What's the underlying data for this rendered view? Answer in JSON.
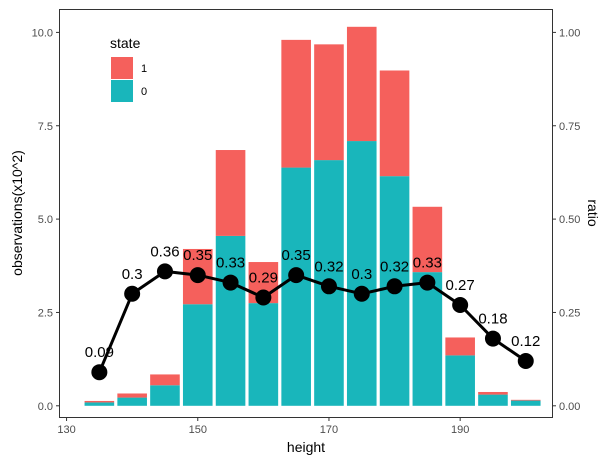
{
  "chart_data": {
    "type": "bar",
    "xlabel": "height",
    "ylabel": "observations(x10^2)",
    "y2label": "ratio",
    "xlim": [
      129,
      204
    ],
    "ylim": [
      -0.3,
      10.6
    ],
    "y2lim": [
      -0.03,
      1.06
    ],
    "xticks": [
      130,
      150,
      170,
      190
    ],
    "yticks": [
      0.0,
      2.5,
      5.0,
      7.5,
      10.0
    ],
    "ytick_labels": [
      "0.0",
      "2.5",
      "5.0",
      "7.5",
      "10.0"
    ],
    "y2ticks": [
      0.0,
      0.25,
      0.5,
      0.75,
      1.0
    ],
    "y2tick_labels": [
      "0.00",
      "0.25",
      "0.50",
      "0.75",
      "1.00"
    ],
    "x": [
      135,
      140,
      145,
      150,
      155,
      160,
      165,
      170,
      175,
      180,
      185,
      190,
      195,
      200
    ],
    "series": [
      {
        "name": "0",
        "color": "#19B6BB",
        "values": [
          0.09,
          0.22,
          0.55,
          2.72,
          4.55,
          2.75,
          6.38,
          6.58,
          7.09,
          6.15,
          3.58,
          1.35,
          0.3,
          0.14
        ]
      },
      {
        "name": "1",
        "color": "#F5605C",
        "values": [
          0.04,
          0.11,
          0.29,
          1.48,
          2.3,
          1.1,
          3.42,
          3.1,
          3.06,
          2.83,
          1.75,
          0.48,
          0.07,
          0.02
        ]
      }
    ],
    "ratio": {
      "values": [
        0.09,
        0.3,
        0.36,
        0.35,
        0.33,
        0.29,
        0.35,
        0.32,
        0.3,
        0.32,
        0.33,
        0.27,
        0.18,
        0.12
      ],
      "labels": [
        "0.09",
        "0.3",
        "0.36",
        "0.35",
        "0.33",
        "0.29",
        "0.35",
        "0.32",
        "0.3",
        "0.32",
        "0.33",
        "0.27",
        "0.18",
        "0.12"
      ]
    },
    "legend": {
      "title": "state",
      "position": "top-left",
      "entries": [
        {
          "label": "1",
          "color": "#F5605C"
        },
        {
          "label": "0",
          "color": "#19B6BB"
        }
      ]
    },
    "grid": false
  }
}
